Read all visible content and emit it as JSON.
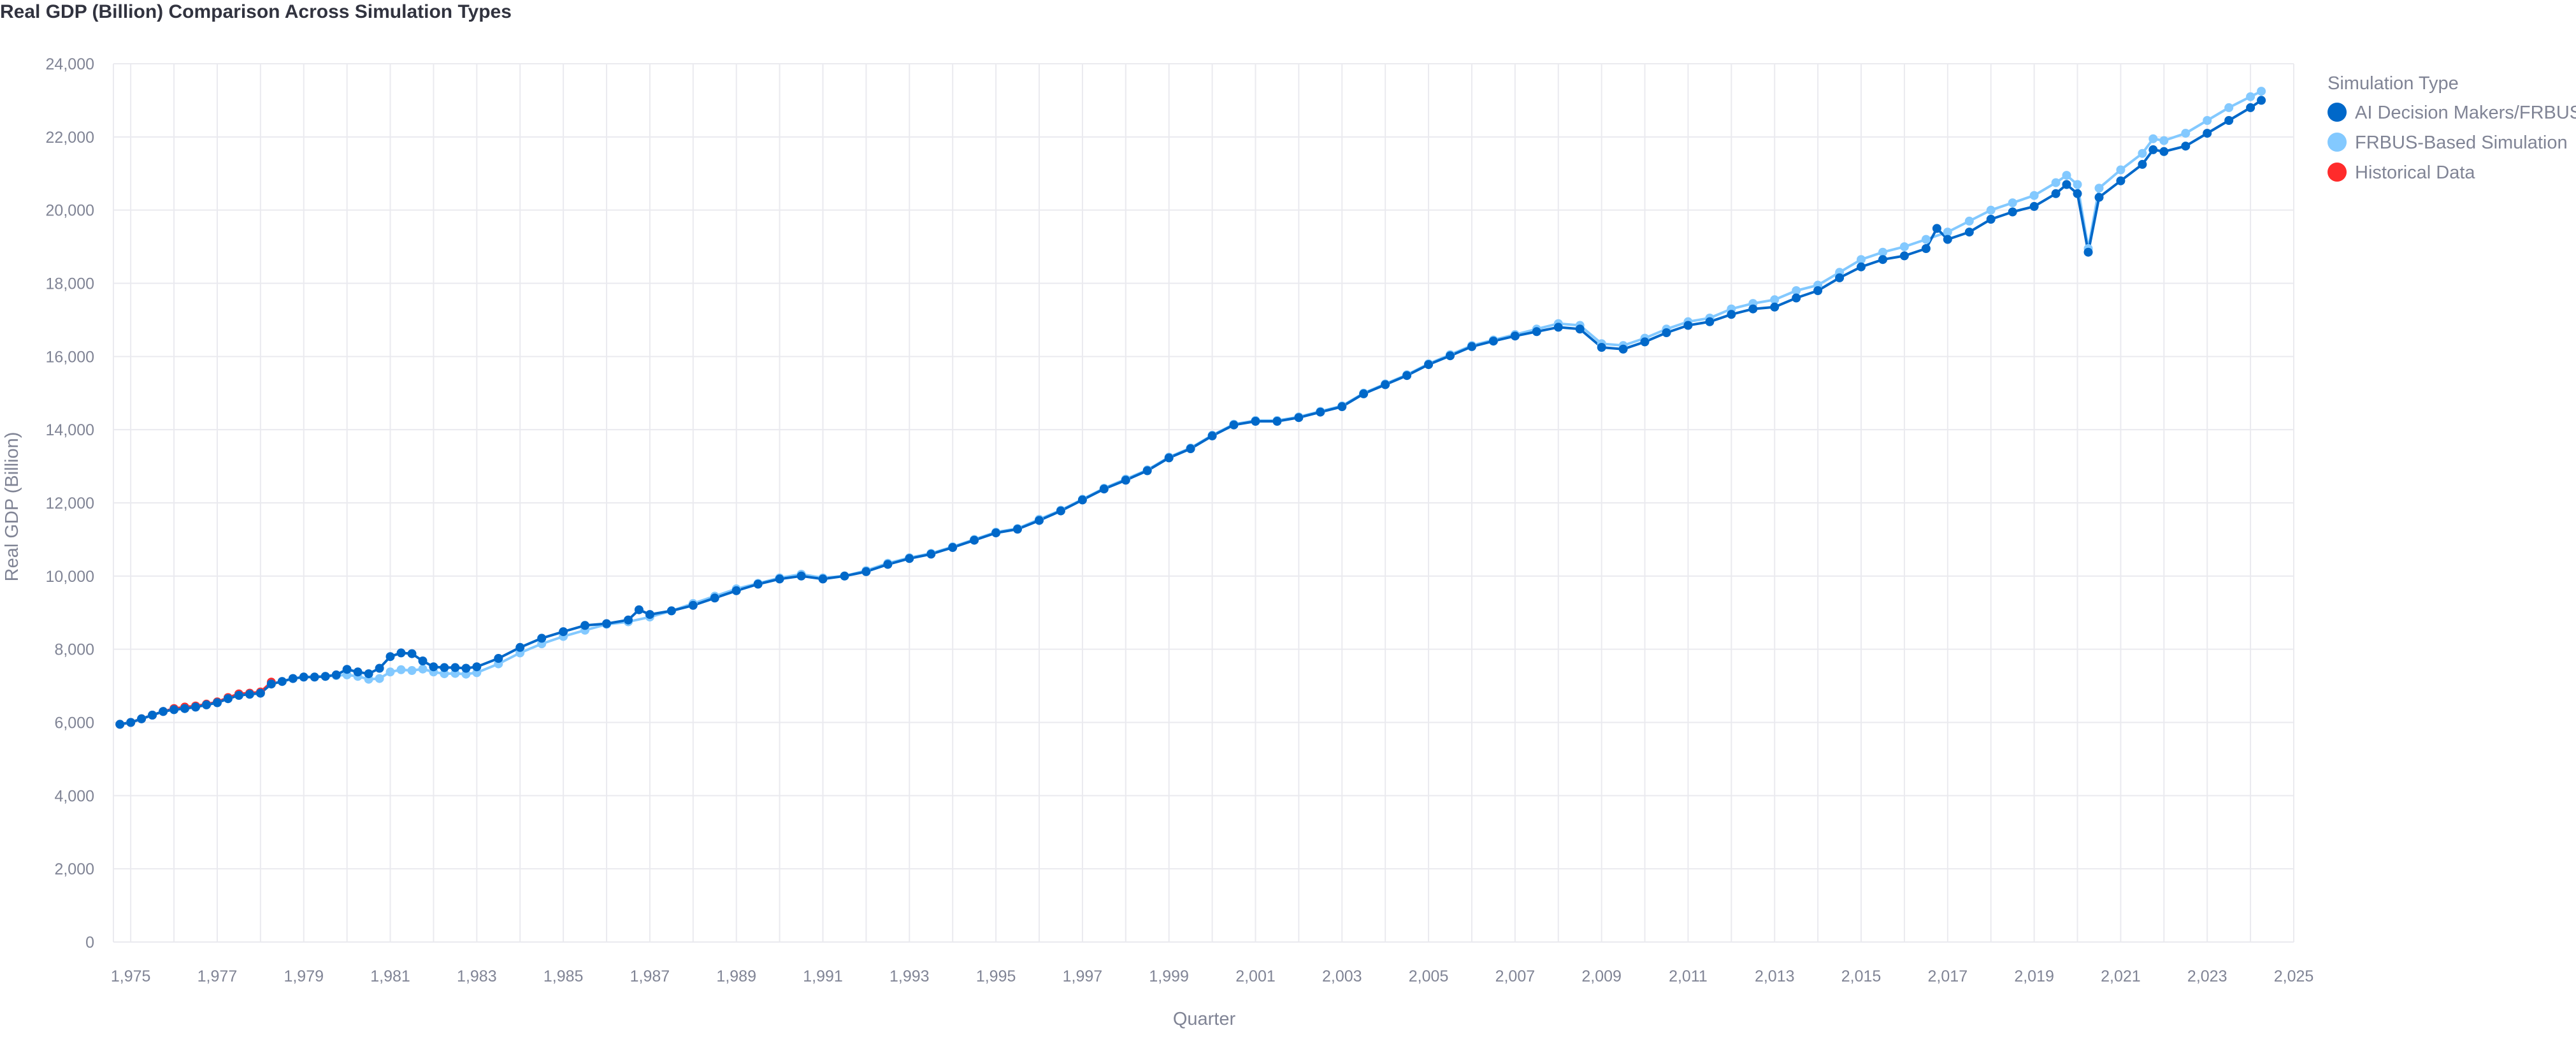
{
  "chart_data": {
    "type": "line",
    "title": "Real GDP (Billion) Comparison Across Simulation Types",
    "xlabel": "Quarter",
    "ylabel": "Real GDP (Billion)",
    "xlim": [
      1974.6,
      2025.0
    ],
    "ylim": [
      0,
      24000
    ],
    "x_ticks": [
      "1,975",
      "1,977",
      "1,979",
      "1,981",
      "1,983",
      "1,985",
      "1,987",
      "1,989",
      "1,991",
      "1,993",
      "1,995",
      "1,997",
      "1,999",
      "2,001",
      "2,003",
      "2,005",
      "2,007",
      "2,009",
      "2,011",
      "2,013",
      "2,015",
      "2,017",
      "2,019",
      "2,021",
      "2,023",
      "2,025"
    ],
    "x_tick_values": [
      1975,
      1977,
      1979,
      1981,
      1983,
      1985,
      1987,
      1989,
      1991,
      1993,
      1995,
      1997,
      1999,
      2001,
      2003,
      2005,
      2007,
      2009,
      2011,
      2013,
      2015,
      2017,
      2019,
      2021,
      2023,
      2025
    ],
    "y_ticks": [
      "0",
      "2,000",
      "4,000",
      "6,000",
      "8,000",
      "10,000",
      "12,000",
      "14,000",
      "16,000",
      "18,000",
      "20,000",
      "22,000",
      "24,000"
    ],
    "y_tick_values": [
      0,
      2000,
      4000,
      6000,
      8000,
      10000,
      12000,
      14000,
      16000,
      18000,
      20000,
      22000,
      24000
    ],
    "grid": true,
    "legend": {
      "title": "Simulation Type",
      "position": "right",
      "entries": [
        "AI Decision Makers/FRBUS",
        "FRBUS-Based Simulation",
        "Historical Data"
      ]
    },
    "series": [
      {
        "name": "Historical Data",
        "color": "#ff2b2b",
        "points": [
          [
            1974.75,
            5950
          ],
          [
            1975.0,
            6000
          ],
          [
            1975.25,
            6100
          ],
          [
            1975.5,
            6200
          ],
          [
            1975.75,
            6300
          ],
          [
            1976.0,
            6380
          ],
          [
            1976.25,
            6420
          ],
          [
            1976.5,
            6450
          ],
          [
            1976.75,
            6500
          ],
          [
            1977.0,
            6560
          ],
          [
            1977.25,
            6680
          ],
          [
            1977.5,
            6780
          ],
          [
            1977.75,
            6800
          ],
          [
            1978.0,
            6830
          ],
          [
            1978.25,
            7100
          ]
        ]
      },
      {
        "name": "FRBUS-Based Simulation",
        "color": "#83c9ff",
        "points": [
          [
            1974.75,
            5950
          ],
          [
            1975.0,
            6000
          ],
          [
            1975.25,
            6100
          ],
          [
            1975.5,
            6200
          ],
          [
            1975.75,
            6300
          ],
          [
            1976.0,
            6350
          ],
          [
            1976.25,
            6380
          ],
          [
            1976.5,
            6420
          ],
          [
            1976.75,
            6480
          ],
          [
            1977.0,
            6540
          ],
          [
            1977.25,
            6650
          ],
          [
            1977.5,
            6740
          ],
          [
            1977.75,
            6770
          ],
          [
            1978.0,
            6800
          ],
          [
            1978.25,
            7050
          ],
          [
            1978.5,
            7120
          ],
          [
            1978.75,
            7200
          ],
          [
            1979.0,
            7240
          ],
          [
            1979.25,
            7240
          ],
          [
            1979.5,
            7260
          ],
          [
            1979.75,
            7280
          ],
          [
            1980.0,
            7300
          ],
          [
            1980.25,
            7260
          ],
          [
            1980.5,
            7180
          ],
          [
            1980.75,
            7200
          ],
          [
            1981.0,
            7380
          ],
          [
            1981.25,
            7440
          ],
          [
            1981.5,
            7420
          ],
          [
            1981.75,
            7460
          ],
          [
            1982.0,
            7380
          ],
          [
            1982.25,
            7330
          ],
          [
            1982.5,
            7340
          ],
          [
            1982.75,
            7320
          ],
          [
            1983.0,
            7360
          ],
          [
            1983.5,
            7600
          ],
          [
            1984.0,
            7900
          ],
          [
            1984.5,
            8150
          ],
          [
            1985.0,
            8350
          ],
          [
            1985.5,
            8520
          ],
          [
            1986.0,
            8680
          ],
          [
            1986.5,
            8750
          ],
          [
            1987.0,
            8880
          ],
          [
            1987.5,
            9050
          ],
          [
            1988.0,
            9250
          ],
          [
            1988.5,
            9450
          ],
          [
            1989.0,
            9650
          ],
          [
            1989.5,
            9800
          ],
          [
            1990.0,
            9950
          ],
          [
            1990.5,
            10050
          ],
          [
            1991.0,
            9950
          ],
          [
            1991.5,
            10000
          ],
          [
            1992.0,
            10150
          ],
          [
            1992.5,
            10350
          ],
          [
            1993.0,
            10500
          ],
          [
            1993.5,
            10620
          ],
          [
            1994.0,
            10800
          ],
          [
            1994.5,
            11000
          ],
          [
            1995.0,
            11200
          ],
          [
            1995.5,
            11300
          ],
          [
            1996.0,
            11550
          ],
          [
            1996.5,
            11800
          ],
          [
            1997.0,
            12100
          ],
          [
            1997.5,
            12400
          ],
          [
            1998.0,
            12650
          ],
          [
            1998.5,
            12900
          ],
          [
            1999.0,
            13250
          ],
          [
            1999.5,
            13500
          ],
          [
            2000.0,
            13850
          ],
          [
            2000.5,
            14150
          ],
          [
            2001.0,
            14250
          ],
          [
            2001.5,
            14250
          ],
          [
            2002.0,
            14350
          ],
          [
            2002.5,
            14500
          ],
          [
            2003.0,
            14650
          ],
          [
            2003.5,
            15000
          ],
          [
            2004.0,
            15250
          ],
          [
            2004.5,
            15500
          ],
          [
            2005.0,
            15800
          ],
          [
            2005.5,
            16050
          ],
          [
            2006.0,
            16300
          ],
          [
            2006.5,
            16450
          ],
          [
            2007.0,
            16600
          ],
          [
            2007.5,
            16750
          ],
          [
            2008.0,
            16900
          ],
          [
            2008.5,
            16850
          ],
          [
            2009.0,
            16350
          ],
          [
            2009.5,
            16300
          ],
          [
            2010.0,
            16500
          ],
          [
            2010.5,
            16750
          ],
          [
            2011.0,
            16950
          ],
          [
            2011.5,
            17050
          ],
          [
            2012.0,
            17300
          ],
          [
            2012.5,
            17450
          ],
          [
            2013.0,
            17550
          ],
          [
            2013.5,
            17800
          ],
          [
            2014.0,
            17950
          ],
          [
            2014.5,
            18300
          ],
          [
            2015.0,
            18650
          ],
          [
            2015.5,
            18850
          ],
          [
            2016.0,
            19000
          ],
          [
            2016.5,
            19200
          ],
          [
            2017.0,
            19400
          ],
          [
            2017.5,
            19700
          ],
          [
            2018.0,
            20000
          ],
          [
            2018.5,
            20200
          ],
          [
            2019.0,
            20400
          ],
          [
            2019.5,
            20750
          ],
          [
            2019.75,
            20950
          ],
          [
            2020.0,
            20700
          ],
          [
            2020.25,
            18950
          ],
          [
            2020.5,
            20600
          ],
          [
            2021.0,
            21100
          ],
          [
            2021.5,
            21550
          ],
          [
            2021.75,
            21950
          ],
          [
            2022.0,
            21900
          ],
          [
            2022.5,
            22100
          ],
          [
            2023.0,
            22450
          ],
          [
            2023.5,
            22800
          ],
          [
            2024.0,
            23100
          ],
          [
            2024.25,
            23250
          ]
        ]
      },
      {
        "name": "AI Decision Makers/FRBUS",
        "color": "#0068c9",
        "points": [
          [
            1974.75,
            5950
          ],
          [
            1975.0,
            6000
          ],
          [
            1975.25,
            6100
          ],
          [
            1975.5,
            6200
          ],
          [
            1975.75,
            6300
          ],
          [
            1976.0,
            6350
          ],
          [
            1976.25,
            6380
          ],
          [
            1976.5,
            6420
          ],
          [
            1976.75,
            6480
          ],
          [
            1977.0,
            6540
          ],
          [
            1977.25,
            6650
          ],
          [
            1977.5,
            6740
          ],
          [
            1977.75,
            6770
          ],
          [
            1978.0,
            6800
          ],
          [
            1978.25,
            7050
          ],
          [
            1978.5,
            7120
          ],
          [
            1978.75,
            7200
          ],
          [
            1979.0,
            7240
          ],
          [
            1979.25,
            7240
          ],
          [
            1979.5,
            7260
          ],
          [
            1979.75,
            7300
          ],
          [
            1980.0,
            7450
          ],
          [
            1980.25,
            7380
          ],
          [
            1980.5,
            7330
          ],
          [
            1980.75,
            7480
          ],
          [
            1981.0,
            7800
          ],
          [
            1981.25,
            7900
          ],
          [
            1981.5,
            7880
          ],
          [
            1981.75,
            7680
          ],
          [
            1982.0,
            7520
          ],
          [
            1982.25,
            7500
          ],
          [
            1982.5,
            7500
          ],
          [
            1982.75,
            7480
          ],
          [
            1983.0,
            7520
          ],
          [
            1983.5,
            7750
          ],
          [
            1984.0,
            8050
          ],
          [
            1984.5,
            8300
          ],
          [
            1985.0,
            8480
          ],
          [
            1985.5,
            8650
          ],
          [
            1986.0,
            8700
          ],
          [
            1986.5,
            8800
          ],
          [
            1986.75,
            9080
          ],
          [
            1987.0,
            8950
          ],
          [
            1987.5,
            9050
          ],
          [
            1988.0,
            9200
          ],
          [
            1988.5,
            9400
          ],
          [
            1989.0,
            9600
          ],
          [
            1989.5,
            9780
          ],
          [
            1990.0,
            9920
          ],
          [
            1990.5,
            10000
          ],
          [
            1991.0,
            9920
          ],
          [
            1991.5,
            10000
          ],
          [
            1992.0,
            10120
          ],
          [
            1992.5,
            10320
          ],
          [
            1993.0,
            10480
          ],
          [
            1993.5,
            10600
          ],
          [
            1994.0,
            10780
          ],
          [
            1994.5,
            10980
          ],
          [
            1995.0,
            11180
          ],
          [
            1995.5,
            11280
          ],
          [
            1996.0,
            11520
          ],
          [
            1996.5,
            11780
          ],
          [
            1997.0,
            12080
          ],
          [
            1997.5,
            12380
          ],
          [
            1998.0,
            12620
          ],
          [
            1998.5,
            12880
          ],
          [
            1999.0,
            13230
          ],
          [
            1999.5,
            13480
          ],
          [
            2000.0,
            13830
          ],
          [
            2000.5,
            14130
          ],
          [
            2001.0,
            14230
          ],
          [
            2001.5,
            14230
          ],
          [
            2002.0,
            14330
          ],
          [
            2002.5,
            14480
          ],
          [
            2003.0,
            14630
          ],
          [
            2003.5,
            14980
          ],
          [
            2004.0,
            15230
          ],
          [
            2004.5,
            15480
          ],
          [
            2005.0,
            15780
          ],
          [
            2005.5,
            16020
          ],
          [
            2006.0,
            16270
          ],
          [
            2006.5,
            16420
          ],
          [
            2007.0,
            16560
          ],
          [
            2007.5,
            16680
          ],
          [
            2008.0,
            16800
          ],
          [
            2008.5,
            16750
          ],
          [
            2009.0,
            16250
          ],
          [
            2009.5,
            16200
          ],
          [
            2010.0,
            16400
          ],
          [
            2010.5,
            16650
          ],
          [
            2011.0,
            16850
          ],
          [
            2011.5,
            16950
          ],
          [
            2012.0,
            17150
          ],
          [
            2012.5,
            17300
          ],
          [
            2013.0,
            17350
          ],
          [
            2013.5,
            17600
          ],
          [
            2014.0,
            17800
          ],
          [
            2014.5,
            18150
          ],
          [
            2015.0,
            18450
          ],
          [
            2015.5,
            18650
          ],
          [
            2016.0,
            18750
          ],
          [
            2016.5,
            18950
          ],
          [
            2016.75,
            19500
          ],
          [
            2017.0,
            19200
          ],
          [
            2017.5,
            19400
          ],
          [
            2018.0,
            19750
          ],
          [
            2018.5,
            19950
          ],
          [
            2019.0,
            20100
          ],
          [
            2019.5,
            20450
          ],
          [
            2019.75,
            20700
          ],
          [
            2020.0,
            20450
          ],
          [
            2020.25,
            18850
          ],
          [
            2020.5,
            20350
          ],
          [
            2021.0,
            20800
          ],
          [
            2021.5,
            21250
          ],
          [
            2021.75,
            21650
          ],
          [
            2022.0,
            21600
          ],
          [
            2022.5,
            21750
          ],
          [
            2023.0,
            22100
          ],
          [
            2023.5,
            22450
          ],
          [
            2024.0,
            22800
          ],
          [
            2024.25,
            23000
          ]
        ]
      }
    ]
  }
}
